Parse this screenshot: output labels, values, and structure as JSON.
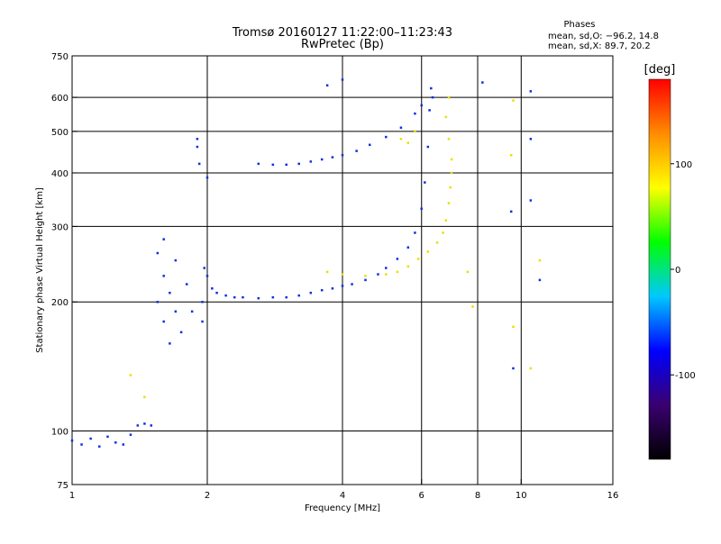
{
  "header": {
    "title_line1": "Tromsø 20160127 11:22:00–11:23:43",
    "title_line2": "RwPretec (Bp)",
    "phases_title": "Phases",
    "phases_line_o": "mean, sd,O: −96.2, 14.8",
    "phases_line_x": "mean, sd,X:  89.7, 20.2"
  },
  "chart_data": {
    "type": "scatter",
    "xlabel": "Frequency [MHz]",
    "ylabel": "Stationary phase Virtual Height [km]",
    "x_scale": "log",
    "y_scale": "log",
    "xlim": [
      1,
      16
    ],
    "ylim": [
      75,
      750
    ],
    "x_ticks": [
      1,
      2,
      4,
      6,
      8,
      10,
      16
    ],
    "x_tick_labels": [
      "1",
      "2",
      "4",
      "6",
      "8",
      "10",
      "16"
    ],
    "x_grid": [
      2,
      4,
      6,
      8,
      10
    ],
    "y_ticks": [
      75,
      100,
      200,
      300,
      400,
      500,
      600,
      750
    ],
    "y_tick_labels": [
      "75",
      "100",
      "200",
      "300",
      "400",
      "500",
      "600",
      "750"
    ],
    "y_grid": [
      100,
      200,
      300,
      400,
      500,
      600
    ],
    "grid": true,
    "colorbar": {
      "label": "[deg]",
      "range": [
        -180,
        180
      ],
      "ticks": [
        100,
        0,
        -100
      ],
      "tick_labels": [
        "100",
        "0",
        "-100"
      ],
      "colors": [
        "#000000",
        "#3a0070",
        "#0000ff",
        "#00c8ff",
        "#00ff00",
        "#ffff00",
        "#ff8c00",
        "#ff0000"
      ]
    },
    "series": [
      {
        "trace": "O",
        "color": "#1030e0",
        "points": [
          [
            1.0,
            95
          ],
          [
            1.05,
            93
          ],
          [
            1.1,
            96
          ],
          [
            1.15,
            92
          ],
          [
            1.2,
            97
          ],
          [
            1.25,
            94
          ],
          [
            1.3,
            93
          ],
          [
            1.35,
            98
          ],
          [
            1.4,
            103
          ],
          [
            1.45,
            104
          ],
          [
            1.5,
            103
          ],
          [
            1.55,
            200
          ],
          [
            1.55,
            260
          ],
          [
            1.6,
            180
          ],
          [
            1.6,
            230
          ],
          [
            1.6,
            280
          ],
          [
            1.65,
            160
          ],
          [
            1.65,
            210
          ],
          [
            1.7,
            190
          ],
          [
            1.7,
            250
          ],
          [
            1.75,
            170
          ],
          [
            1.8,
            220
          ],
          [
            1.85,
            190
          ],
          [
            1.9,
            480
          ],
          [
            1.9,
            460
          ],
          [
            1.92,
            420
          ],
          [
            1.95,
            180
          ],
          [
            1.95,
            200
          ],
          [
            1.97,
            240
          ],
          [
            2.0,
            230
          ],
          [
            2.0,
            390
          ],
          [
            2.05,
            215
          ],
          [
            2.1,
            210
          ],
          [
            2.2,
            207
          ],
          [
            2.3,
            205
          ],
          [
            2.4,
            205
          ],
          [
            2.6,
            204
          ],
          [
            2.8,
            205
          ],
          [
            3.0,
            205
          ],
          [
            3.2,
            207
          ],
          [
            3.4,
            210
          ],
          [
            3.6,
            213
          ],
          [
            3.8,
            215
          ],
          [
            4.0,
            218
          ],
          [
            4.2,
            220
          ],
          [
            4.5,
            225
          ],
          [
            4.8,
            232
          ],
          [
            5.0,
            240
          ],
          [
            5.3,
            252
          ],
          [
            5.6,
            268
          ],
          [
            5.8,
            290
          ],
          [
            6.0,
            330
          ],
          [
            6.1,
            380
          ],
          [
            6.2,
            460
          ],
          [
            6.25,
            560
          ],
          [
            6.3,
            630
          ],
          [
            6.35,
            600
          ],
          [
            2.6,
            420
          ],
          [
            2.8,
            418
          ],
          [
            3.0,
            418
          ],
          [
            3.2,
            420
          ],
          [
            3.4,
            425
          ],
          [
            3.6,
            430
          ],
          [
            3.8,
            435
          ],
          [
            4.0,
            440
          ],
          [
            4.3,
            450
          ],
          [
            4.6,
            465
          ],
          [
            5.0,
            485
          ],
          [
            5.4,
            510
          ],
          [
            5.8,
            550
          ],
          [
            6.0,
            575
          ],
          [
            3.7,
            640
          ],
          [
            4.0,
            660
          ],
          [
            8.2,
            650
          ],
          [
            9.5,
            325
          ],
          [
            10.5,
            480
          ],
          [
            10.5,
            345
          ],
          [
            10.5,
            620
          ],
          [
            11,
            225
          ],
          [
            9.6,
            140
          ]
        ]
      },
      {
        "trace": "X",
        "color": "#e8e000",
        "points": [
          [
            3.7,
            235
          ],
          [
            4.0,
            232
          ],
          [
            4.5,
            230
          ],
          [
            5.0,
            232
          ],
          [
            5.3,
            235
          ],
          [
            5.6,
            242
          ],
          [
            5.9,
            252
          ],
          [
            6.2,
            262
          ],
          [
            6.5,
            275
          ],
          [
            6.7,
            290
          ],
          [
            6.8,
            310
          ],
          [
            6.9,
            340
          ],
          [
            6.95,
            370
          ],
          [
            7.0,
            400
          ],
          [
            7.0,
            430
          ],
          [
            6.9,
            480
          ],
          [
            6.8,
            540
          ],
          [
            6.9,
            600
          ],
          [
            5.4,
            480
          ],
          [
            5.6,
            470
          ],
          [
            5.8,
            500
          ],
          [
            1.35,
            135
          ],
          [
            1.45,
            120
          ],
          [
            9.6,
            590
          ],
          [
            9.5,
            440
          ],
          [
            9.6,
            175
          ],
          [
            10.5,
            140
          ],
          [
            7.6,
            235
          ],
          [
            7.8,
            195
          ],
          [
            11,
            250
          ]
        ]
      }
    ]
  }
}
